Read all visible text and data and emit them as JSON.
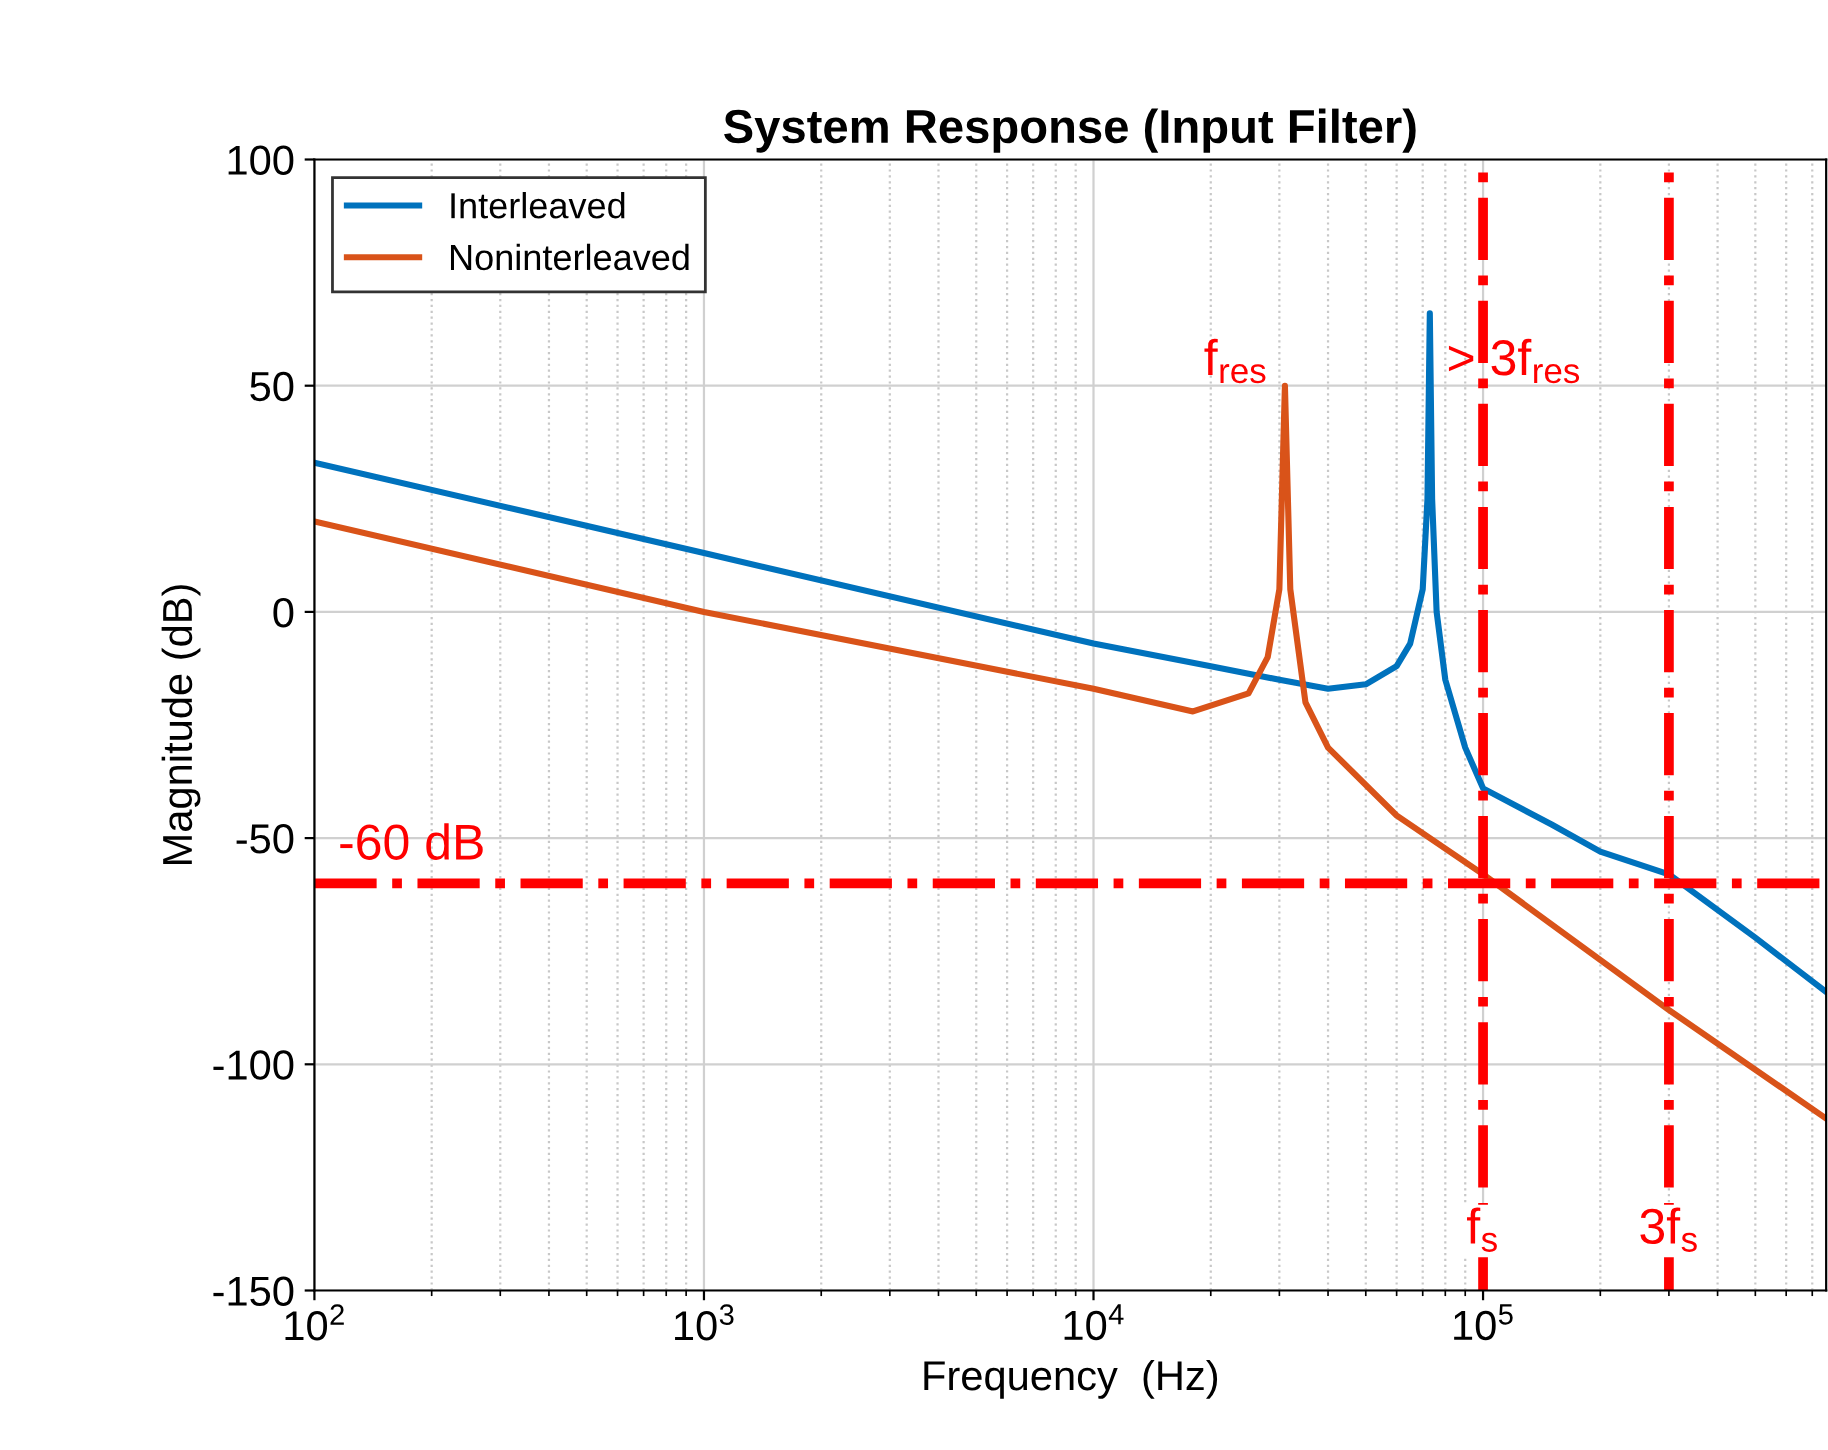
{
  "chart_data": {
    "type": "line",
    "title": "System Response (Input Filter)",
    "xlabel": "Frequency  (Hz)",
    "ylabel": "Magnitude (dB)",
    "log": "x",
    "xlim": [
      100,
      760000
    ],
    "xticks": [
      {
        "value": 100,
        "label": "10$^{2}$"
      },
      {
        "value": 1000,
        "label": "10$^{3}$"
      },
      {
        "value": 10000,
        "label": "10$^{4}$"
      },
      {
        "value": 100000,
        "label": "10$^{5}$"
      }
    ],
    "ylim": [
      -150,
      100
    ],
    "yticks": [
      -150,
      -100,
      -50,
      0,
      50,
      100
    ],
    "grid": true,
    "legend": "top left",
    "line_style": "solid",
    "marker": "none",
    "series": [
      {
        "name": "Interleaved",
        "color": "#0072bd",
        "x": [
          100,
          1000,
          10000,
          20000,
          30000,
          40000,
          50000,
          60000,
          65000,
          70000,
          72000,
          73000,
          74000,
          76000,
          80000,
          90000,
          100000,
          150000,
          200000,
          300000,
          500000,
          760000
        ],
        "values": [
          33,
          13,
          -7,
          -12,
          -15,
          -17,
          -16,
          -12,
          -7,
          5,
          25,
          66,
          25,
          0,
          -15,
          -30,
          -39,
          -47,
          -53,
          -58,
          -72,
          -84
        ]
      },
      {
        "name": "Noninterleaved",
        "color": "#d95319",
        "x": [
          100,
          1000,
          10000,
          18000,
          25000,
          28000,
          30000,
          31000,
          32000,
          35000,
          40000,
          60000,
          100000,
          300000,
          760000
        ],
        "values": [
          20,
          0,
          -17,
          -22,
          -18,
          -10,
          5,
          50,
          5,
          -20,
          -30,
          -45,
          -58,
          -88,
          -112
        ]
      }
    ],
    "ref_lines": [
      {
        "axis": "y",
        "value": -60,
        "label": "-60 dB",
        "color": "#ff0000",
        "line_style": "dashdot"
      },
      {
        "axis": "x",
        "value": 100000,
        "label": "f$_{s}$",
        "color": "#ff0000",
        "line_style": "dashdot"
      },
      {
        "axis": "x",
        "value": 300000,
        "label": "3f$_{s}$",
        "color": "#ff0000",
        "line_style": "dashdot"
      }
    ],
    "annotations": [
      {
        "text": "f$_{res}$",
        "x": 31000,
        "y": 50
      },
      {
        "text": "> 3f$_{res}$",
        "x": 73000,
        "y": 50
      }
    ]
  }
}
